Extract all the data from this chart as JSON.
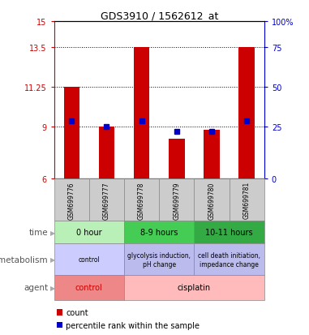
{
  "title": "GDS3910 / 1562612_at",
  "samples": [
    "GSM699776",
    "GSM699777",
    "GSM699778",
    "GSM699779",
    "GSM699780",
    "GSM699781"
  ],
  "bar_values": [
    11.25,
    9.0,
    13.5,
    8.3,
    8.8,
    13.5
  ],
  "bar_bottom": 6.0,
  "percentile_values": [
    9.3,
    9.0,
    9.3,
    8.7,
    8.7,
    9.3
  ],
  "ylim_left": [
    6,
    15
  ],
  "yticks_left": [
    6,
    9,
    11.25,
    13.5,
    15
  ],
  "ytick_labels_left": [
    "6",
    "9",
    "11.25",
    "13.5",
    "15"
  ],
  "yticks_right_vals": [
    "0",
    "25",
    "50",
    "75",
    "100%"
  ],
  "yticks_right_pos": [
    6,
    9,
    11.25,
    13.5,
    15
  ],
  "hlines": [
    9,
    11.25,
    13.5
  ],
  "bar_color": "#cc0000",
  "percentile_color": "#0000cc",
  "bar_width": 0.45,
  "time_groups": [
    {
      "label": "0 hour",
      "start": 0,
      "end": 2,
      "color": "#b8f0b8"
    },
    {
      "label": "8-9 hours",
      "start": 2,
      "end": 4,
      "color": "#44cc55"
    },
    {
      "label": "10-11 hours",
      "start": 4,
      "end": 6,
      "color": "#33aa44"
    }
  ],
  "metabolism_groups": [
    {
      "label": "control",
      "start": 0,
      "end": 2,
      "color": "#ccccff"
    },
    {
      "label": "glycolysis induction,\npH change",
      "start": 2,
      "end": 4,
      "color": "#bbbbee"
    },
    {
      "label": "cell death initiation,\nimpedance change",
      "start": 4,
      "end": 6,
      "color": "#bbbbee"
    }
  ],
  "agent_groups": [
    {
      "label": "control",
      "start": 0,
      "end": 2,
      "color": "#ee8888",
      "text_color": "#cc0000"
    },
    {
      "label": "cisplatin",
      "start": 2,
      "end": 6,
      "color": "#ffbbbb",
      "text_color": "#000000"
    }
  ],
  "row_label_color": "#555555",
  "sample_box_color": "#cccccc",
  "legend_count_color": "#cc0000",
  "legend_percentile_color": "#0000cc",
  "background_color": "#ffffff",
  "left_tick_color": "#cc0000",
  "right_tick_color": "#0000cc"
}
